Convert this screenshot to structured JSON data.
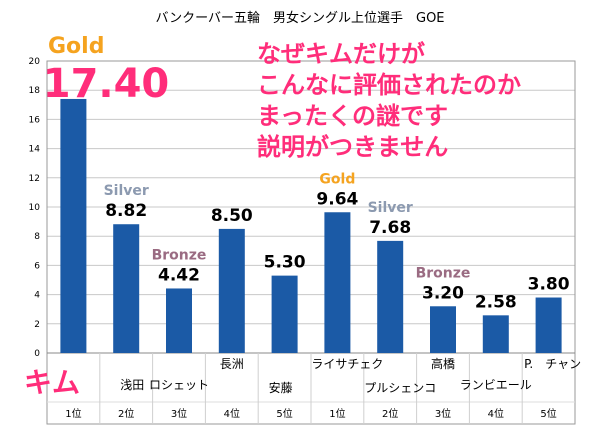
{
  "colors": {
    "bar": "#1b5aa6",
    "gold": "#f5a31f",
    "silver": "#8c9ab0",
    "bronze": "#9a6b82",
    "annotation": "#ff2d7a",
    "grid": "#c8c8c8",
    "frame": "#9a9a9a"
  },
  "chart_data": {
    "type": "bar",
    "title": "バンクーバー五輪　男女シングル上位選手　GOE",
    "ylim": [
      0,
      20
    ],
    "yticks": [
      0,
      2,
      4,
      6,
      8,
      10,
      12,
      14,
      16,
      18,
      20
    ],
    "grid": true,
    "categories": [
      {
        "name": "キム",
        "rank": "1位",
        "value": 17.4,
        "label": "17.40",
        "medal": "Gold"
      },
      {
        "name": "浅田",
        "rank": "2位",
        "value": 8.82,
        "label": "8.82",
        "medal": "Silver"
      },
      {
        "name": "ロシェット",
        "rank": "3位",
        "value": 4.42,
        "label": "4.42",
        "medal": "Bronze"
      },
      {
        "name": "長洲",
        "rank": "4位",
        "value": 8.5,
        "label": "8.50",
        "medal": ""
      },
      {
        "name": "安藤",
        "rank": "5位",
        "value": 5.3,
        "label": "5.30",
        "medal": ""
      },
      {
        "name": "ライサチェク",
        "rank": "1位",
        "value": 9.64,
        "label": "9.64",
        "medal": "Gold"
      },
      {
        "name": "プルシェンコ",
        "rank": "2位",
        "value": 7.68,
        "label": "7.68",
        "medal": "Silver"
      },
      {
        "name": "高橋",
        "rank": "3位",
        "value": 3.2,
        "label": "3.20",
        "medal": "Bronze"
      },
      {
        "name": "ランビエール",
        "rank": "4位",
        "value": 2.58,
        "label": "2.58",
        "medal": ""
      },
      {
        "name": "P.　チャン",
        "rank": "5位",
        "value": 3.8,
        "label": "3.80",
        "medal": ""
      }
    ],
    "annotation": [
      "なぜキムだけが",
      "こんなに評価されたのか",
      "まったくの謎です",
      "説明がつきません"
    ]
  }
}
